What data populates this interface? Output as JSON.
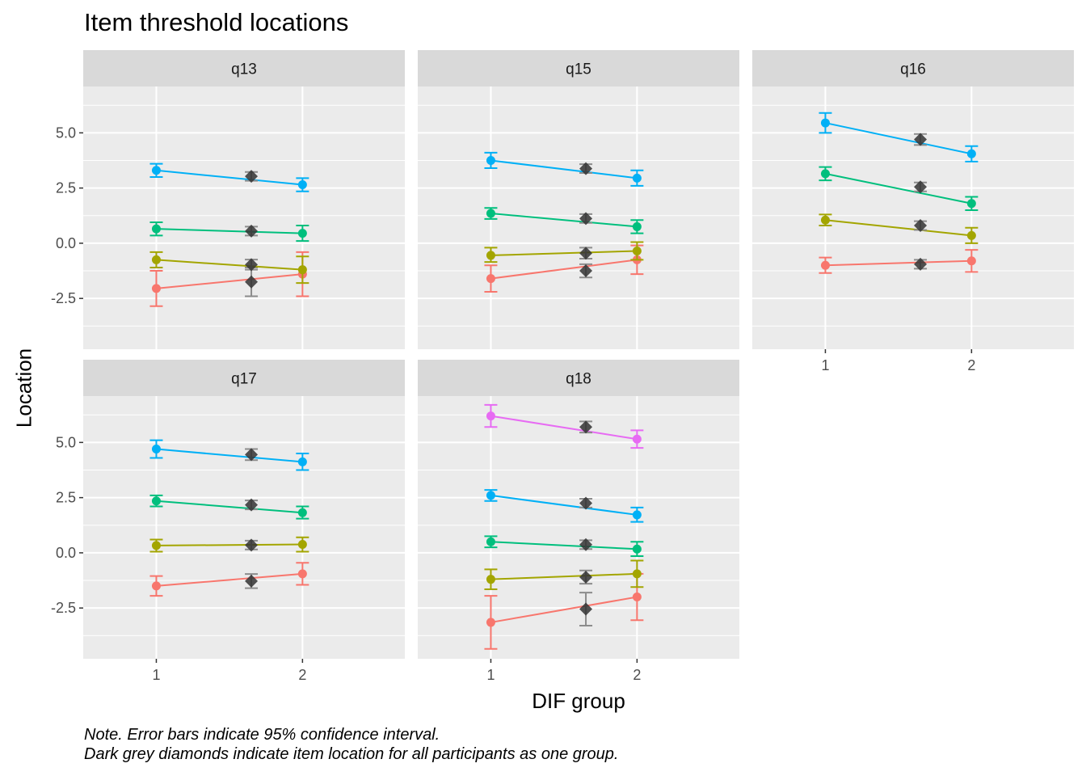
{
  "chart_data": {
    "type": "line",
    "title": "Item threshold locations",
    "xlabel": "DIF group",
    "ylabel": "Location",
    "x_ticks": [
      "1",
      "2"
    ],
    "y_ticks": [
      "5.0",
      "2.5",
      "0.0",
      "-2.5"
    ],
    "ylim": [
      -4.8,
      7.1
    ],
    "grid": true,
    "legend": "none",
    "notes": [
      "Note. Error bars indicate 95% confidence interval.",
      "Dark grey diamonds indicate item location for all participants as one group."
    ],
    "threshold_colors": [
      "#F8766D",
      "#A3A500",
      "#00BF7D",
      "#00B0F6",
      "#E76BF3"
    ],
    "overall_color": "#333333",
    "panels": [
      {
        "name": "q13",
        "thresholds": [
          {
            "g1": -2.05,
            "g1_lo": -2.85,
            "g1_hi": -1.25,
            "g2": -1.4,
            "g2_lo": -2.4,
            "g2_hi": -0.4,
            "all": -1.75,
            "all_lo": -2.4,
            "all_hi": -1.1
          },
          {
            "g1": -0.75,
            "g1_lo": -1.1,
            "g1_hi": -0.4,
            "g2": -1.2,
            "g2_lo": -1.8,
            "g2_hi": -0.6,
            "all": -0.97,
            "all_lo": -1.2,
            "all_hi": -0.74
          },
          {
            "g1": 0.65,
            "g1_lo": 0.35,
            "g1_hi": 0.95,
            "g2": 0.45,
            "g2_lo": 0.1,
            "g2_hi": 0.8,
            "all": 0.55,
            "all_lo": 0.35,
            "all_hi": 0.75
          },
          {
            "g1": 3.3,
            "g1_lo": 3.0,
            "g1_hi": 3.6,
            "g2": 2.65,
            "g2_lo": 2.35,
            "g2_hi": 2.95,
            "all": 3.03,
            "all_lo": 2.83,
            "all_hi": 3.23
          }
        ]
      },
      {
        "name": "q15",
        "thresholds": [
          {
            "g1": -1.6,
            "g1_lo": -2.2,
            "g1_hi": -1.0,
            "g2": -0.75,
            "g2_lo": -1.4,
            "g2_hi": -0.1,
            "all": -1.25,
            "all_lo": -1.55,
            "all_hi": -0.95
          },
          {
            "g1": -0.55,
            "g1_lo": -0.85,
            "g1_hi": -0.2,
            "g2": -0.35,
            "g2_lo": -0.75,
            "g2_hi": 0.05,
            "all": -0.45,
            "all_lo": -0.7,
            "all_hi": -0.2
          },
          {
            "g1": 1.35,
            "g1_lo": 1.1,
            "g1_hi": 1.6,
            "g2": 0.75,
            "g2_lo": 0.45,
            "g2_hi": 1.05,
            "all": 1.12,
            "all_lo": 0.92,
            "all_hi": 1.32
          },
          {
            "g1": 3.75,
            "g1_lo": 3.4,
            "g1_hi": 4.1,
            "g2": 2.95,
            "g2_lo": 2.6,
            "g2_hi": 3.3,
            "all": 3.38,
            "all_lo": 3.18,
            "all_hi": 3.58
          }
        ]
      },
      {
        "name": "q16",
        "thresholds": [
          {
            "g1": -1.0,
            "g1_lo": -1.35,
            "g1_hi": -0.65,
            "g2": -0.8,
            "g2_lo": -1.3,
            "g2_hi": -0.3,
            "all": -0.95,
            "all_lo": -1.15,
            "all_hi": -0.75
          },
          {
            "g1": 1.05,
            "g1_lo": 0.8,
            "g1_hi": 1.3,
            "g2": 0.35,
            "g2_lo": 0.0,
            "g2_hi": 0.7,
            "all": 0.8,
            "all_lo": 0.6,
            "all_hi": 1.0
          },
          {
            "g1": 3.15,
            "g1_lo": 2.85,
            "g1_hi": 3.45,
            "g2": 1.8,
            "g2_lo": 1.5,
            "g2_hi": 2.1,
            "all": 2.55,
            "all_lo": 2.35,
            "all_hi": 2.75
          },
          {
            "g1": 5.45,
            "g1_lo": 5.0,
            "g1_hi": 5.9,
            "g2": 4.05,
            "g2_lo": 3.7,
            "g2_hi": 4.4,
            "all": 4.7,
            "all_lo": 4.45,
            "all_hi": 4.95
          }
        ]
      },
      {
        "name": "q17",
        "thresholds": [
          {
            "g1": -1.5,
            "g1_lo": -1.95,
            "g1_hi": -1.05,
            "g2": -0.95,
            "g2_lo": -1.45,
            "g2_hi": -0.45,
            "all": -1.28,
            "all_lo": -1.6,
            "all_hi": -0.96
          },
          {
            "g1": 0.33,
            "g1_lo": 0.05,
            "g1_hi": 0.6,
            "g2": 0.38,
            "g2_lo": 0.05,
            "g2_hi": 0.7,
            "all": 0.35,
            "all_lo": 0.15,
            "all_hi": 0.55
          },
          {
            "g1": 2.35,
            "g1_lo": 2.1,
            "g1_hi": 2.6,
            "g2": 1.82,
            "g2_lo": 1.55,
            "g2_hi": 2.1,
            "all": 2.17,
            "all_lo": 1.97,
            "all_hi": 2.37
          },
          {
            "g1": 4.7,
            "g1_lo": 4.3,
            "g1_hi": 5.1,
            "g2": 4.12,
            "g2_lo": 3.75,
            "g2_hi": 4.5,
            "all": 4.45,
            "all_lo": 4.2,
            "all_hi": 4.7
          }
        ]
      },
      {
        "name": "q18",
        "thresholds": [
          {
            "g1": -3.15,
            "g1_lo": -4.35,
            "g1_hi": -1.95,
            "g2": -2.0,
            "g2_lo": -3.05,
            "g2_hi": -0.95,
            "all": -2.55,
            "all_lo": -3.3,
            "all_hi": -1.8
          },
          {
            "g1": -1.2,
            "g1_lo": -1.65,
            "g1_hi": -0.75,
            "g2": -0.95,
            "g2_lo": -1.55,
            "g2_hi": -0.35,
            "all": -1.1,
            "all_lo": -1.4,
            "all_hi": -0.8
          },
          {
            "g1": 0.5,
            "g1_lo": 0.25,
            "g1_hi": 0.75,
            "g2": 0.17,
            "g2_lo": -0.15,
            "g2_hi": 0.5,
            "all": 0.37,
            "all_lo": 0.17,
            "all_hi": 0.57
          },
          {
            "g1": 2.6,
            "g1_lo": 2.35,
            "g1_hi": 2.85,
            "g2": 1.72,
            "g2_lo": 1.4,
            "g2_hi": 2.05,
            "all": 2.25,
            "all_lo": 2.05,
            "all_hi": 2.45
          },
          {
            "g1": 6.2,
            "g1_lo": 5.7,
            "g1_hi": 6.7,
            "g2": 5.15,
            "g2_lo": 4.75,
            "g2_hi": 5.55,
            "all": 5.7,
            "all_lo": 5.45,
            "all_hi": 5.95
          }
        ]
      }
    ]
  }
}
